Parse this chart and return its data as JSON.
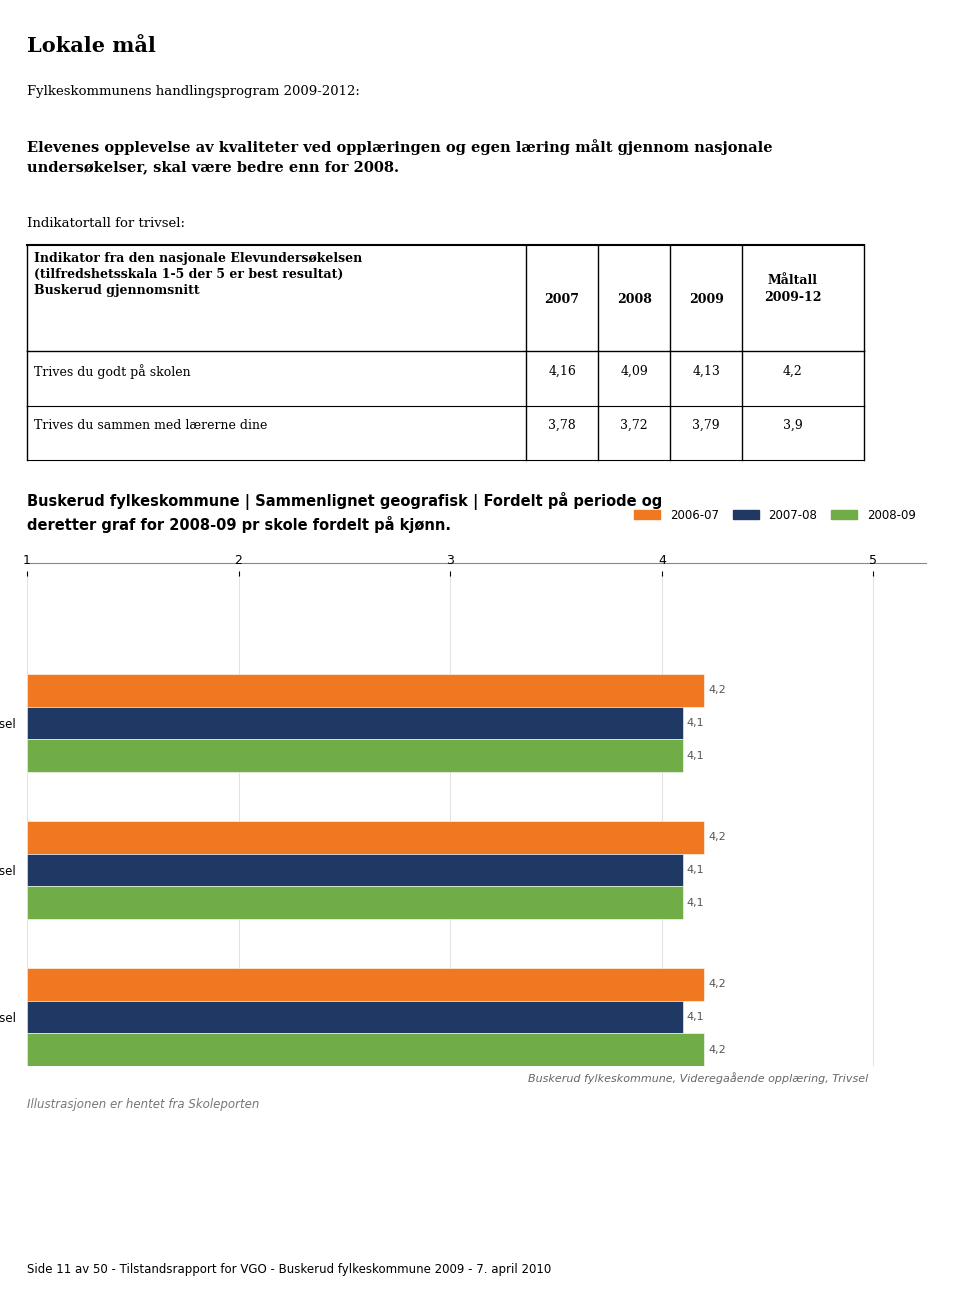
{
  "title_main": "Lokale mål",
  "program_label": "Fylkeskommunens handlingsprogram 2009-2012:",
  "bold_text": "Elevenes opplevelse av kvaliteter ved opplæringen og egen læring målt gjennom nasjonale\nundersøkelser, skal være bedre enn for 2008.",
  "indicator_label": "Indikatortall for trivsel:",
  "table_header_col0": "Indikator fra den nasjonale Elevundersøkelsen\n(tilfredshetsskala 1-5 der 5 er best resultat)\nBuskerud gjennomsnitt",
  "table_header_cols": [
    "2007",
    "2008",
    "2009",
    "Måltall\n2009-12"
  ],
  "table_rows": [
    [
      "Trives du godt på skolen",
      "4,16",
      "4,09",
      "4,13",
      "4,2"
    ],
    [
      "Trives du sammen med lærerne dine",
      "3,78",
      "3,72",
      "3,79",
      "3,9"
    ]
  ],
  "chart_title": "Buskerud fylkeskommune | Sammenlignet geografisk | Fordelt på periode og\nderetter graf for 2008-09 pr skole fordelt på kjønn.",
  "legend_labels": [
    "2006-07",
    "2007-08",
    "2008-09"
  ],
  "legend_colors": [
    "#F07820",
    "#1F3864",
    "#70AD47"
  ],
  "bar_categories": [
    "Buskerud fylkeskommune - Trivsel",
    "Buskerud fylke - Trivsel",
    "Nasjonalt - Trivsel"
  ],
  "bar_data": {
    "Buskerud fylkeskommune - Trivsel": [
      4.2,
      4.1,
      4.1
    ],
    "Buskerud fylke - Trivsel": [
      4.2,
      4.1,
      4.1
    ],
    "Nasjonalt - Trivsel": [
      4.2,
      4.1,
      4.2
    ]
  },
  "bar_labels": {
    "Buskerud fylkeskommune - Trivsel": [
      "4,2",
      "4,1",
      "4,1"
    ],
    "Buskerud fylke - Trivsel": [
      "4,2",
      "4,1",
      "4,1"
    ],
    "Nasjonalt - Trivsel": [
      "4,2",
      "4,1",
      "4,2"
    ]
  },
  "x_min": 1,
  "x_max": 5,
  "x_ticks": [
    1,
    2,
    3,
    4,
    5
  ],
  "footer_note": "Buskerud fylkeskommune, Videregaående opplæring, Trivsel",
  "footer_source": "Illustrasjonen er hentet fra Skoleporten",
  "page_footer": "Side 11 av 50 - Tilstandsrapport for VGO - Buskerud fylkeskommune 2009 - 7. april 2010",
  "bg_color": "#FFFFFF",
  "text_color": "#000000"
}
